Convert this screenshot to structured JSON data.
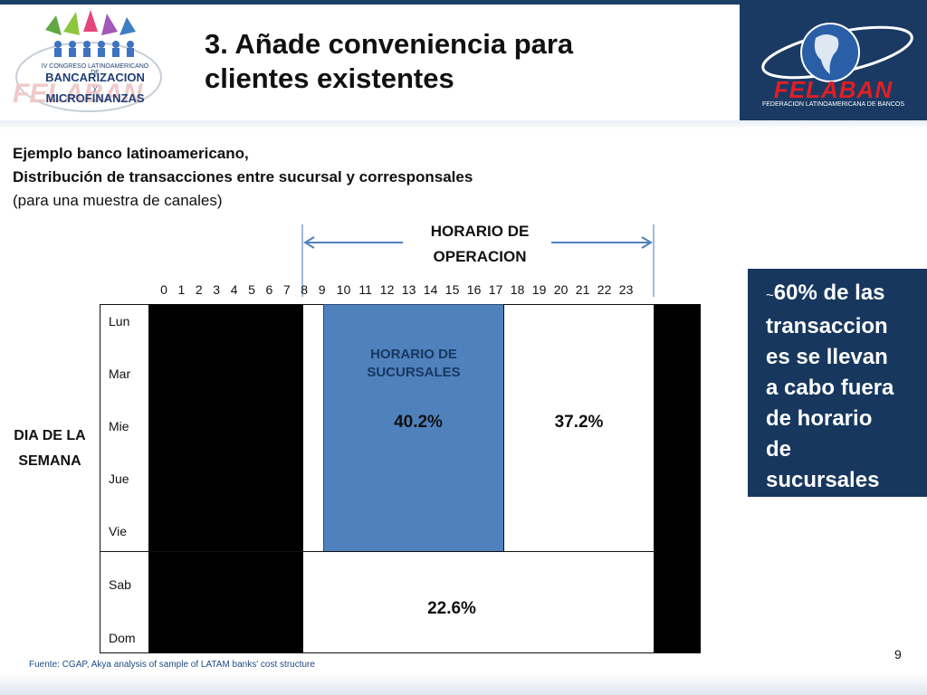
{
  "header": {
    "title_line1": "3. Añade conveniencia para",
    "title_line2": "clientes existentes",
    "logo_left": {
      "line1": "IV CONGRESO LATINOAMERICANO DE",
      "line2": "BANCARIZACION",
      "line3": "y",
      "line4": "MICROFINANZAS"
    },
    "logo_right": {
      "name": "FELABAN",
      "subtitle": "FEDERACION LATINOAMERICANA DE BANCOS"
    }
  },
  "subtitle": {
    "line1": "Ejemplo banco latinoamericano,",
    "line2": "Distribución de transacciones entre sucursal y corresponsales",
    "line3": "(para una muestra de canales)"
  },
  "diagram": {
    "operating_hours_label_line1": "HORARIO DE",
    "operating_hours_label_line2": "OPERACION",
    "hours": [
      "0",
      "1",
      "2",
      "3",
      "4",
      "5",
      "6",
      "7",
      "8",
      "9",
      "10",
      "11",
      "12",
      "13",
      "14",
      "15",
      "16",
      "17",
      "18",
      "19",
      "20",
      "21",
      "22",
      "23"
    ],
    "days": [
      "Lun",
      "Mar",
      "Mie",
      "Jue",
      "Vie",
      "Sab",
      "Dom"
    ],
    "y_axis_label_line1": "DIA DE LA",
    "y_axis_label_line2": "SEMANA",
    "branch_hours_label_line1": "HORARIO DE",
    "branch_hours_label_line2": "SUCURSALES",
    "branch_hours_pct": "40.2%",
    "weekday_off_hours_pct": "37.2%",
    "weekend_pct": "22.6%",
    "colors": {
      "branch": "#4f81bd",
      "closed": "#000000",
      "callout": "#17375e"
    }
  },
  "callout": {
    "tilde": "~",
    "text_first": "60% de las",
    "lines": [
      "transaccion",
      "es se llevan",
      "a cabo fuera",
      "de horario",
      "de",
      "sucursales"
    ]
  },
  "footer": {
    "source_label": "Fuente",
    "source_text": ": CGAP, Akya analysis of sample of LATAM banks' cost structure",
    "page_number": "9"
  }
}
